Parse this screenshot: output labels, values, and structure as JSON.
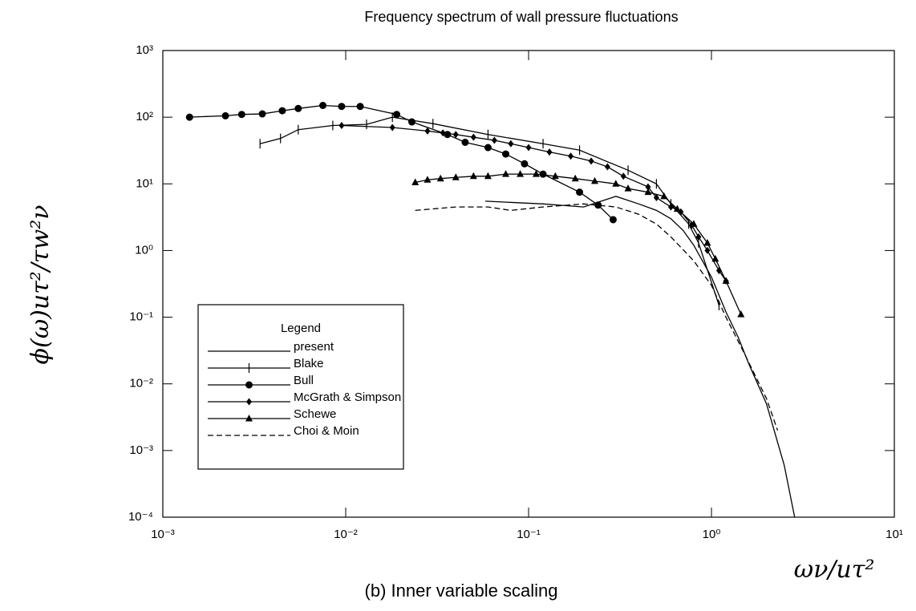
{
  "chart_data": {
    "type": "line",
    "title": "Frequency spectrum of wall pressure fluctuations",
    "caption": "(b) Inner variable scaling",
    "xlabel": "ων/uτ²",
    "ylabel": "ϕ(ω)uτ²/τw²ν",
    "xscale": "log",
    "yscale": "log",
    "xlim": [
      0.001,
      10
    ],
    "ylim": [
      0.0001,
      1000
    ],
    "xticks": [
      {
        "value": 0.001,
        "label": "10⁻³"
      },
      {
        "value": 0.01,
        "label": "10⁻²"
      },
      {
        "value": 0.1,
        "label": "10⁻¹"
      },
      {
        "value": 1,
        "label": "10⁰"
      },
      {
        "value": 10,
        "label": "10¹"
      }
    ],
    "yticks": [
      {
        "value": 0.0001,
        "label": "10⁻⁴"
      },
      {
        "value": 0.001,
        "label": "10⁻³"
      },
      {
        "value": 0.01,
        "label": "10⁻²"
      },
      {
        "value": 0.1,
        "label": "10⁻¹"
      },
      {
        "value": 1,
        "label": "10⁰"
      },
      {
        "value": 10,
        "label": "10¹"
      },
      {
        "value": 100,
        "label": "10²"
      },
      {
        "value": 1000,
        "label": "10³"
      }
    ],
    "legend_title": "Legend",
    "legend": "lower left",
    "series": [
      {
        "name": "present",
        "color": "#000000",
        "dash": "solid",
        "marker": "none",
        "x": [
          0.058,
          0.12,
          0.2,
          0.3,
          0.4,
          0.5,
          0.6,
          0.7,
          0.8,
          1.0,
          1.2,
          1.4,
          1.6,
          2.0,
          2.5,
          2.85
        ],
        "values": [
          5.5,
          5,
          4.5,
          6.5,
          5,
          4,
          3,
          2,
          1.2,
          0.4,
          0.12,
          0.05,
          0.02,
          0.005,
          0.0006,
          0.0001
        ]
      },
      {
        "name": "Blake",
        "color": "#000000",
        "dash": "solid",
        "marker": "plus",
        "x": [
          0.0034,
          0.0044,
          0.0055,
          0.0085,
          0.013,
          0.018,
          0.03,
          0.06,
          0.12,
          0.19,
          0.35,
          0.5,
          0.6,
          0.75,
          0.85,
          1.1
        ],
        "values": [
          40,
          48,
          65,
          75,
          78,
          100,
          80,
          55,
          40,
          32,
          16,
          10,
          5,
          2.5,
          1.3,
          0.15
        ]
      },
      {
        "name": "Bull",
        "color": "#000000",
        "dash": "solid",
        "marker": "circle",
        "x": [
          0.0014,
          0.0022,
          0.0027,
          0.0035,
          0.0045,
          0.0055,
          0.0075,
          0.0095,
          0.012,
          0.019,
          0.023,
          0.036,
          0.045,
          0.06,
          0.075,
          0.095,
          0.12,
          0.19,
          0.24,
          0.29
        ],
        "values": [
          100,
          105,
          110,
          112,
          125,
          135,
          150,
          145,
          145,
          110,
          85,
          55,
          42,
          35,
          28,
          20,
          14,
          7.5,
          4.8,
          2.9
        ]
      },
      {
        "name": "McGrath & Simpson",
        "color": "#000000",
        "dash": "solid",
        "marker": "diamond",
        "x": [
          0.0095,
          0.018,
          0.028,
          0.034,
          0.04,
          0.05,
          0.065,
          0.08,
          0.1,
          0.13,
          0.17,
          0.22,
          0.27,
          0.33,
          0.45,
          0.5,
          0.6,
          0.68,
          0.78,
          0.85,
          0.95,
          1.1,
          1.2
        ],
        "values": [
          75,
          70,
          62,
          58,
          55,
          50,
          45,
          40,
          35,
          30,
          26,
          22,
          18,
          13,
          9,
          6.2,
          4.5,
          3.8,
          2.4,
          1.6,
          1,
          0.5,
          0.35
        ]
      },
      {
        "name": "Schewe",
        "color": "#000000",
        "dash": "solid",
        "marker": "triangle",
        "x": [
          0.024,
          0.028,
          0.033,
          0.04,
          0.05,
          0.06,
          0.075,
          0.09,
          0.11,
          0.14,
          0.18,
          0.23,
          0.3,
          0.35,
          0.45,
          0.55,
          0.65,
          0.8,
          0.95,
          1.05,
          1.2,
          1.45
        ],
        "values": [
          10.5,
          11.5,
          12,
          12.5,
          13,
          13,
          14,
          14,
          14,
          13,
          12,
          11,
          10,
          8.5,
          7.5,
          6.5,
          4.2,
          2.5,
          1.3,
          0.75,
          0.35,
          0.11
        ]
      },
      {
        "name": "Choi & Moin",
        "color": "#000000",
        "dash": "dashed",
        "marker": "none",
        "x": [
          0.024,
          0.04,
          0.06,
          0.08,
          0.12,
          0.2,
          0.3,
          0.4,
          0.5,
          0.6,
          0.8,
          1.0,
          1.2,
          1.5,
          2.0,
          2.3
        ],
        "values": [
          4,
          4.5,
          4.5,
          4,
          4.5,
          5,
          4.5,
          3.5,
          2.5,
          1.6,
          0.7,
          0.3,
          0.1,
          0.03,
          0.006,
          0.002
        ]
      }
    ]
  }
}
